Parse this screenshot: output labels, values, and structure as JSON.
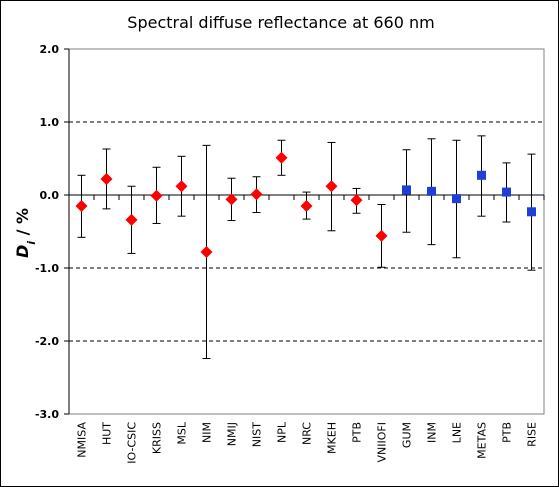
{
  "chart_data": {
    "type": "scatter",
    "title": "Spectral diffuse reflectance at 660 nm",
    "ylabel": "D_i / %",
    "ylabel_parts": {
      "symbol": "D",
      "subscript": "i",
      "unit": " / %"
    },
    "xlabel": "",
    "ylim": [
      -3.0,
      2.0
    ],
    "yticks": [
      -3.0,
      -2.0,
      -1.0,
      0.0,
      1.0,
      2.0
    ],
    "ytick_labels": [
      "-3.0",
      "-2.0",
      "-1.0",
      "0.0",
      "1.0",
      "2.0"
    ],
    "grid": "horizontal dashed at -2.0, -1.0, 1.0",
    "categories": [
      "NMISA",
      "HUT",
      "IO-CSIC",
      "KRISS",
      "MSL",
      "NIM",
      "NMIJ",
      "NIST",
      "NPL",
      "NRC",
      "MKEH",
      "PTB",
      "VNIIOFI",
      "GUM",
      "INM",
      "LNE",
      "METAS",
      "PTB",
      "RISE"
    ],
    "series": [
      {
        "marker": "diamond",
        "color": "#ff0000",
        "categories": [
          "NMISA",
          "HUT",
          "IO-CSIC",
          "KRISS",
          "MSL",
          "NIM",
          "NMIJ",
          "NIST",
          "NPL",
          "NRC",
          "MKEH",
          "PTB",
          "VNIIOFI"
        ],
        "values": [
          -0.15,
          0.22,
          -0.34,
          -0.01,
          0.12,
          -0.78,
          -0.06,
          0.01,
          0.51,
          -0.15,
          0.12,
          -0.07,
          -0.56
        ],
        "err_low": [
          -0.58,
          -0.19,
          -0.8,
          -0.39,
          -0.29,
          -2.24,
          -0.35,
          -0.24,
          0.27,
          -0.33,
          -0.49,
          -0.25,
          -0.99
        ],
        "err_high": [
          0.27,
          0.63,
          0.12,
          0.38,
          0.53,
          0.68,
          0.23,
          0.25,
          0.75,
          0.04,
          0.72,
          0.09,
          -0.13
        ]
      },
      {
        "marker": "square",
        "color": "#1f3fd8",
        "categories": [
          "GUM",
          "INM",
          "LNE",
          "METAS",
          "PTB",
          "RISE"
        ],
        "values": [
          0.07,
          0.05,
          -0.05,
          0.27,
          0.04,
          -0.23
        ],
        "err_low": [
          -0.51,
          -0.68,
          -0.86,
          -0.29,
          -0.37,
          -1.03
        ],
        "err_high": [
          0.62,
          0.77,
          0.75,
          0.81,
          0.44,
          0.56
        ]
      }
    ]
  }
}
